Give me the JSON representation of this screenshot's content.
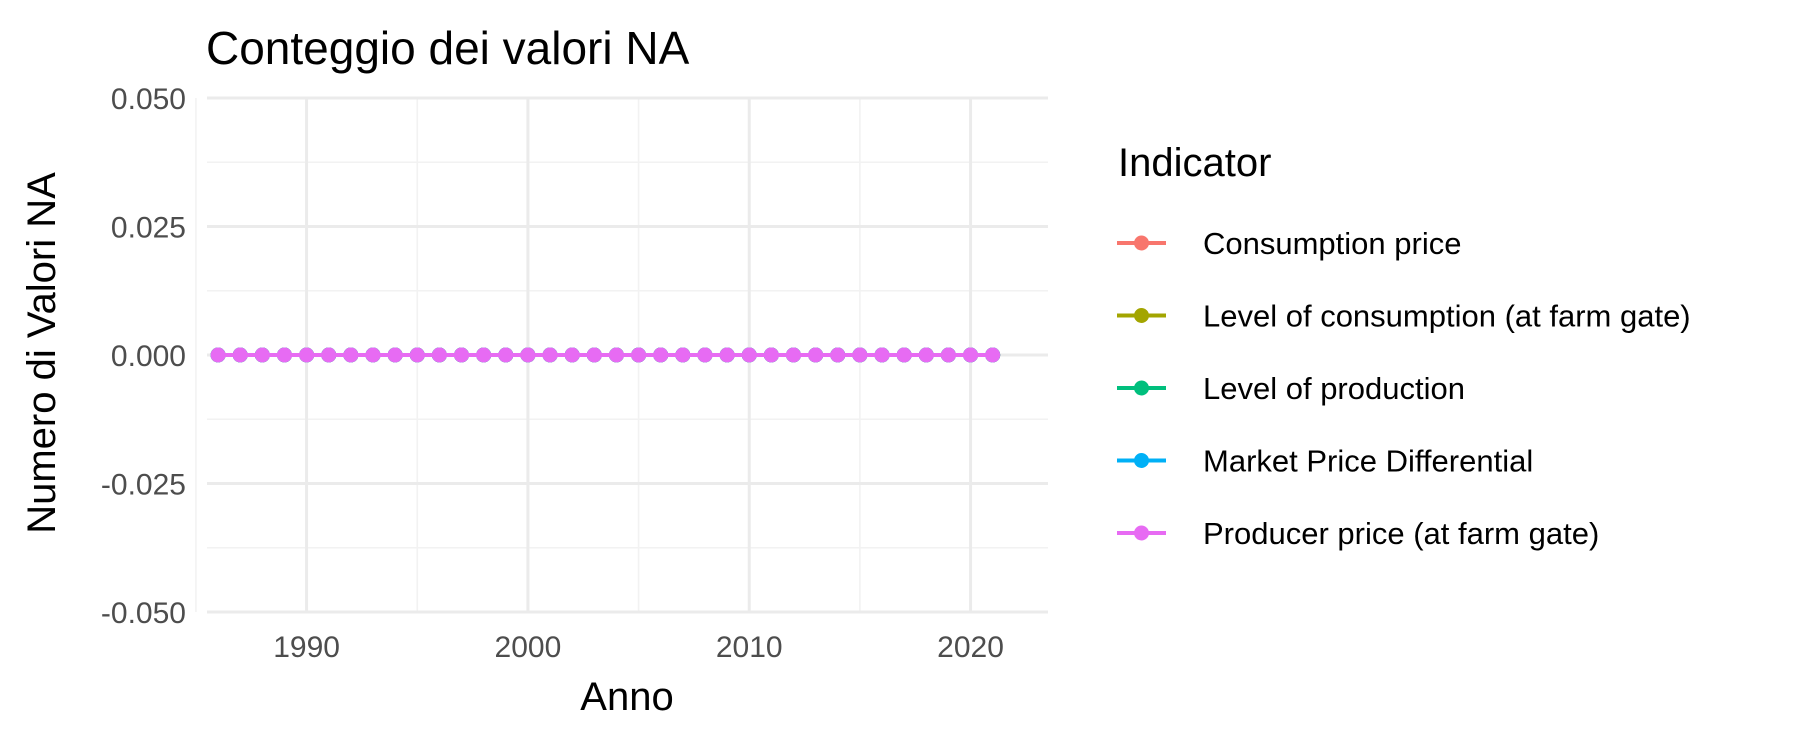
{
  "chart_data": {
    "type": "line",
    "title": "Conteggio dei valori NA",
    "xlabel": "Anno",
    "ylabel": "Numero di Valori NA",
    "xlim": [
      1985.5,
      2023.5
    ],
    "ylim": [
      -0.05,
      0.05
    ],
    "x_ticks": [
      1990,
      2000,
      2010,
      2020
    ],
    "x_tick_labels": [
      "1990",
      "2000",
      "2010",
      "2020"
    ],
    "y_ticks": [
      -0.05,
      -0.025,
      0,
      0.025,
      0.05
    ],
    "y_tick_labels": [
      "-0.050",
      "-0.025",
      "0.000",
      "0.025",
      "0.050"
    ],
    "grid": true,
    "legend": {
      "title": "Indicator",
      "position": "right"
    },
    "x": [
      1986,
      1987,
      1988,
      1989,
      1990,
      1991,
      1992,
      1993,
      1994,
      1995,
      1996,
      1997,
      1998,
      1999,
      2000,
      2001,
      2002,
      2003,
      2004,
      2005,
      2006,
      2007,
      2008,
      2009,
      2010,
      2011,
      2012,
      2013,
      2014,
      2015,
      2016,
      2017,
      2018,
      2019,
      2020,
      2021
    ],
    "series": [
      {
        "name": "Consumption price",
        "color": "#F8766D",
        "values": [
          0,
          0,
          0,
          0,
          0,
          0,
          0,
          0,
          0,
          0,
          0,
          0,
          0,
          0,
          0,
          0,
          0,
          0,
          0,
          0,
          0,
          0,
          0,
          0,
          0,
          0,
          0,
          0,
          0,
          0,
          0,
          0,
          0,
          0,
          0,
          0
        ]
      },
      {
        "name": "Level of consumption (at farm gate)",
        "color": "#A3A500",
        "values": [
          0,
          0,
          0,
          0,
          0,
          0,
          0,
          0,
          0,
          0,
          0,
          0,
          0,
          0,
          0,
          0,
          0,
          0,
          0,
          0,
          0,
          0,
          0,
          0,
          0,
          0,
          0,
          0,
          0,
          0,
          0,
          0,
          0,
          0,
          0,
          0
        ]
      },
      {
        "name": "Level of production",
        "color": "#00BF7D",
        "values": [
          0,
          0,
          0,
          0,
          0,
          0,
          0,
          0,
          0,
          0,
          0,
          0,
          0,
          0,
          0,
          0,
          0,
          0,
          0,
          0,
          0,
          0,
          0,
          0,
          0,
          0,
          0,
          0,
          0,
          0,
          0,
          0,
          0,
          0,
          0,
          0
        ]
      },
      {
        "name": "Market Price Differential",
        "color": "#00B0F6",
        "values": [
          0,
          0,
          0,
          0,
          0,
          0,
          0,
          0,
          0,
          0,
          0,
          0,
          0,
          0,
          0,
          0,
          0,
          0,
          0,
          0,
          0,
          0,
          0,
          0,
          0,
          0,
          0,
          0,
          0,
          0,
          0,
          0,
          0,
          0,
          0,
          0
        ]
      },
      {
        "name": "Producer price (at farm gate)",
        "color": "#E76BF3",
        "values": [
          0,
          0,
          0,
          0,
          0,
          0,
          0,
          0,
          0,
          0,
          0,
          0,
          0,
          0,
          0,
          0,
          0,
          0,
          0,
          0,
          0,
          0,
          0,
          0,
          0,
          0,
          0,
          0,
          0,
          0,
          0,
          0,
          0,
          0,
          0,
          0
        ]
      }
    ]
  }
}
